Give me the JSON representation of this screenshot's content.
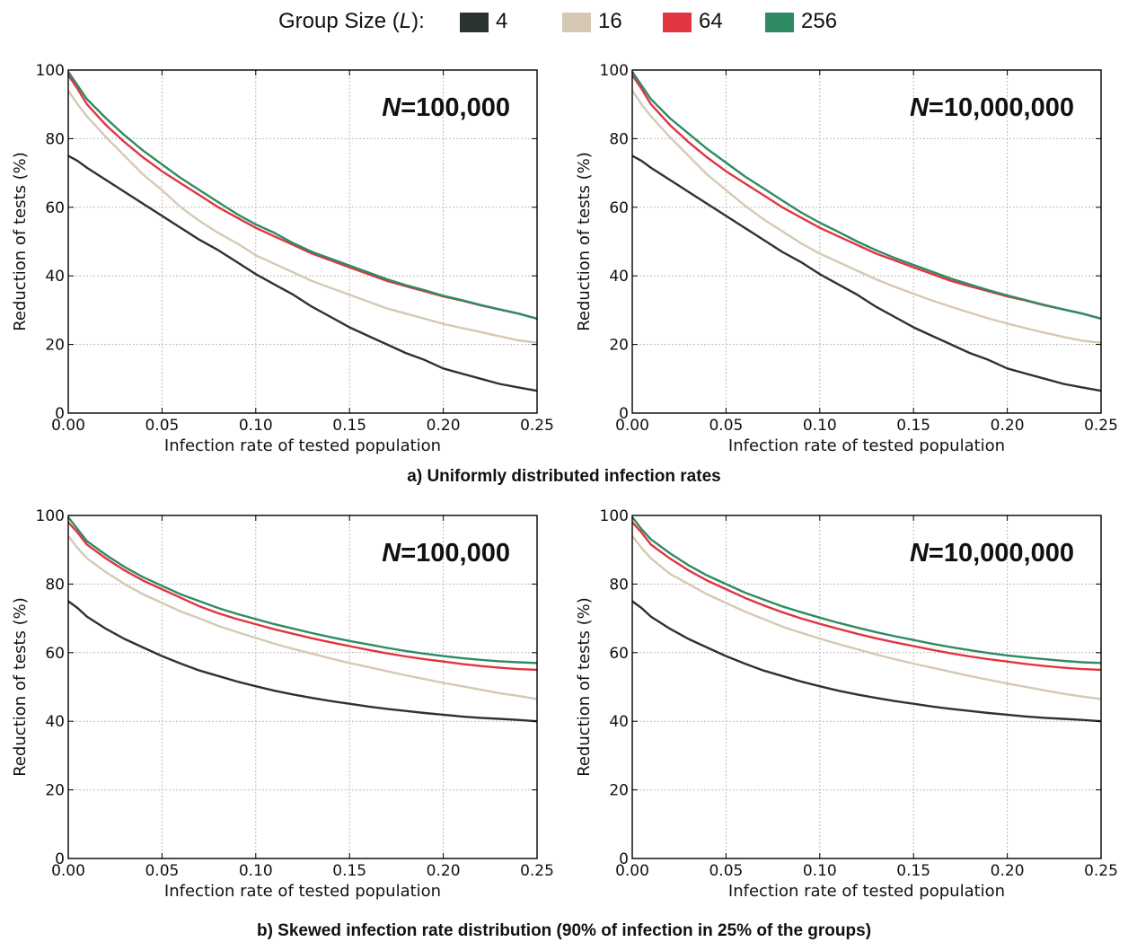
{
  "legend": {
    "title_prefix": "Group Size (",
    "title_var": "L",
    "title_suffix": "):",
    "items": [
      {
        "label": "4",
        "color": "#2b3330"
      },
      {
        "label": "16",
        "color": "#d6c9b3"
      },
      {
        "label": "64",
        "color": "#e23441"
      },
      {
        "label": "256",
        "color": "#2e8b63"
      }
    ]
  },
  "captions": {
    "a": "a) Uniformly distributed infection rates",
    "b": "b) Skewed infection rate distribution (90% of infection in 25% of the groups)"
  },
  "chart_data": [
    {
      "type": "line",
      "annotation_var": "N",
      "annotation_value": "=100,000",
      "xlabel": "Infection rate of tested population",
      "ylabel": "Reduction of tests (%)",
      "xlim": [
        0,
        0.25
      ],
      "ylim": [
        0,
        100
      ],
      "xticks": [
        "0.00",
        "0.05",
        "0.10",
        "0.15",
        "0.20",
        "0.25"
      ],
      "yticks": [
        "0",
        "20",
        "40",
        "60",
        "80",
        "100"
      ],
      "grid": true,
      "x": [
        0,
        0.005,
        0.01,
        0.02,
        0.03,
        0.04,
        0.05,
        0.06,
        0.07,
        0.08,
        0.09,
        0.1,
        0.11,
        0.12,
        0.13,
        0.14,
        0.15,
        0.16,
        0.17,
        0.18,
        0.19,
        0.2,
        0.21,
        0.22,
        0.23,
        0.24,
        0.25
      ],
      "series": [
        {
          "name": "4",
          "values": [
            75.0,
            73.5,
            71.5,
            68.0,
            64.5,
            61.0,
            57.5,
            54.0,
            50.5,
            47.5,
            44.0,
            40.5,
            37.5,
            34.5,
            31.0,
            28.0,
            25.0,
            22.5,
            20.0,
            17.5,
            15.5,
            13.0,
            11.5,
            10.0,
            8.5,
            7.5,
            6.5
          ]
        },
        {
          "name": "16",
          "values": [
            94.0,
            90.0,
            86.5,
            80.5,
            75.0,
            69.5,
            65.0,
            60.0,
            56.0,
            52.5,
            49.5,
            46.0,
            43.5,
            41.0,
            38.5,
            36.5,
            34.5,
            32.5,
            30.5,
            29.0,
            27.5,
            26.0,
            24.8,
            23.6,
            22.4,
            21.2,
            20.5
          ]
        },
        {
          "name": "64",
          "values": [
            98.5,
            94.5,
            90.0,
            84.0,
            79.0,
            74.5,
            70.5,
            67.0,
            63.5,
            60.0,
            57.0,
            54.0,
            51.5,
            49.0,
            46.5,
            44.5,
            42.5,
            40.5,
            38.5,
            37.0,
            35.5,
            34.0,
            32.8,
            31.4,
            30.2,
            29.0,
            27.5
          ]
        },
        {
          "name": "256",
          "values": [
            99.5,
            95.5,
            91.5,
            86.0,
            81.0,
            76.5,
            72.5,
            68.5,
            65.0,
            61.5,
            58.0,
            55.0,
            52.5,
            49.5,
            47.0,
            45.0,
            43.0,
            41.0,
            39.0,
            37.3,
            35.8,
            34.2,
            32.9,
            31.5,
            30.2,
            29.0,
            27.5
          ]
        }
      ]
    },
    {
      "type": "line",
      "annotation_var": "N",
      "annotation_value": "=10,000,000",
      "xlabel": "Infection rate of tested population",
      "ylabel": "Reduction of tests (%)",
      "xlim": [
        0,
        0.25
      ],
      "ylim": [
        0,
        100
      ],
      "xticks": [
        "0.00",
        "0.05",
        "0.10",
        "0.15",
        "0.20",
        "0.25"
      ],
      "yticks": [
        "0",
        "20",
        "40",
        "60",
        "80",
        "100"
      ],
      "grid": true,
      "x": [
        0,
        0.005,
        0.01,
        0.02,
        0.03,
        0.04,
        0.05,
        0.06,
        0.07,
        0.08,
        0.09,
        0.1,
        0.11,
        0.12,
        0.13,
        0.14,
        0.15,
        0.16,
        0.17,
        0.18,
        0.19,
        0.2,
        0.21,
        0.22,
        0.23,
        0.24,
        0.25
      ],
      "series": [
        {
          "name": "4",
          "values": [
            75.0,
            73.5,
            71.5,
            68.0,
            64.5,
            61.0,
            57.5,
            54.0,
            50.5,
            47.0,
            44.0,
            40.5,
            37.5,
            34.5,
            31.0,
            28.0,
            25.0,
            22.5,
            20.0,
            17.5,
            15.5,
            13.0,
            11.5,
            10.0,
            8.5,
            7.5,
            6.5
          ]
        },
        {
          "name": "16",
          "values": [
            94.0,
            90.0,
            86.5,
            80.5,
            75.0,
            69.5,
            65.0,
            60.5,
            56.5,
            53.0,
            49.5,
            46.5,
            44.0,
            41.5,
            39.0,
            36.8,
            34.8,
            32.8,
            31.0,
            29.3,
            27.6,
            26.1,
            24.7,
            23.4,
            22.2,
            21.1,
            20.5
          ]
        },
        {
          "name": "64",
          "values": [
            98.5,
            94.5,
            90.0,
            84.0,
            79.0,
            74.5,
            70.5,
            67.0,
            63.5,
            60.0,
            57.0,
            54.0,
            51.5,
            49.0,
            46.5,
            44.5,
            42.5,
            40.5,
            38.5,
            37.0,
            35.5,
            34.0,
            32.8,
            31.4,
            30.2,
            29.0,
            27.5
          ]
        },
        {
          "name": "256",
          "values": [
            99.5,
            95.5,
            91.5,
            86.0,
            81.5,
            77.0,
            73.0,
            69.0,
            65.5,
            62.0,
            58.5,
            55.5,
            52.8,
            50.0,
            47.5,
            45.2,
            43.2,
            41.2,
            39.2,
            37.5,
            35.8,
            34.3,
            32.9,
            31.5,
            30.2,
            29.0,
            27.5
          ]
        }
      ]
    },
    {
      "type": "line",
      "annotation_var": "N",
      "annotation_value": "=100,000",
      "xlabel": "Infection rate of tested population",
      "ylabel": "Reduction of tests (%)",
      "xlim": [
        0,
        0.25
      ],
      "ylim": [
        0,
        100
      ],
      "xticks": [
        "0.00",
        "0.05",
        "0.10",
        "0.15",
        "0.20",
        "0.25"
      ],
      "yticks": [
        "0",
        "20",
        "40",
        "60",
        "80",
        "100"
      ],
      "grid": true,
      "x": [
        0,
        0.005,
        0.01,
        0.02,
        0.03,
        0.04,
        0.05,
        0.06,
        0.07,
        0.08,
        0.09,
        0.1,
        0.11,
        0.12,
        0.13,
        0.14,
        0.15,
        0.16,
        0.17,
        0.18,
        0.19,
        0.2,
        0.21,
        0.22,
        0.23,
        0.24,
        0.25
      ],
      "series": [
        {
          "name": "4",
          "values": [
            75.0,
            73.0,
            70.5,
            67.0,
            64.0,
            61.5,
            59.0,
            56.8,
            54.8,
            53.2,
            51.6,
            50.2,
            48.9,
            47.8,
            46.8,
            45.9,
            45.1,
            44.3,
            43.6,
            43.0,
            42.4,
            41.9,
            41.4,
            41.0,
            40.7,
            40.4,
            40.0
          ]
        },
        {
          "name": "16",
          "values": [
            94.0,
            90.5,
            87.5,
            83.5,
            80.0,
            77.0,
            74.5,
            72.0,
            70.0,
            67.8,
            66.0,
            64.3,
            62.6,
            61.1,
            59.7,
            58.3,
            57.0,
            55.8,
            54.6,
            53.4,
            52.3,
            51.2,
            50.2,
            49.2,
            48.2,
            47.4,
            46.5
          ]
        },
        {
          "name": "64",
          "values": [
            98.0,
            95.0,
            91.5,
            87.5,
            84.0,
            81.0,
            78.5,
            76.0,
            73.5,
            71.5,
            69.8,
            68.3,
            66.8,
            65.5,
            64.2,
            63.0,
            61.9,
            60.8,
            59.8,
            58.9,
            58.1,
            57.4,
            56.7,
            56.1,
            55.6,
            55.2,
            55.0
          ]
        },
        {
          "name": "256",
          "values": [
            99.5,
            96.0,
            92.5,
            88.5,
            85.0,
            82.0,
            79.5,
            77.0,
            75.0,
            73.0,
            71.3,
            69.8,
            68.3,
            67.0,
            65.7,
            64.5,
            63.4,
            62.4,
            61.4,
            60.5,
            59.7,
            59.0,
            58.4,
            57.9,
            57.5,
            57.2,
            57.0
          ]
        }
      ]
    },
    {
      "type": "line",
      "annotation_var": "N",
      "annotation_value": "=10,000,000",
      "xlabel": "Infection rate of tested population",
      "ylabel": "Reduction of tests (%)",
      "xlim": [
        0,
        0.25
      ],
      "ylim": [
        0,
        100
      ],
      "xticks": [
        "0.00",
        "0.05",
        "0.10",
        "0.15",
        "0.20",
        "0.25"
      ],
      "yticks": [
        "0",
        "20",
        "40",
        "60",
        "80",
        "100"
      ],
      "grid": true,
      "x": [
        0,
        0.005,
        0.01,
        0.02,
        0.03,
        0.04,
        0.05,
        0.06,
        0.07,
        0.08,
        0.09,
        0.1,
        0.11,
        0.12,
        0.13,
        0.14,
        0.15,
        0.16,
        0.17,
        0.18,
        0.19,
        0.2,
        0.21,
        0.22,
        0.23,
        0.24,
        0.25
      ],
      "series": [
        {
          "name": "4",
          "values": [
            75.0,
            73.0,
            70.5,
            67.0,
            64.0,
            61.5,
            59.0,
            56.8,
            54.8,
            53.2,
            51.6,
            50.2,
            48.9,
            47.8,
            46.8,
            45.9,
            45.1,
            44.3,
            43.6,
            43.0,
            42.4,
            41.9,
            41.4,
            41.0,
            40.7,
            40.4,
            40.0
          ]
        },
        {
          "name": "16",
          "values": [
            94.0,
            90.5,
            87.5,
            83.0,
            80.0,
            77.0,
            74.5,
            72.0,
            69.8,
            67.6,
            65.8,
            64.1,
            62.5,
            61.0,
            59.5,
            58.1,
            56.8,
            55.6,
            54.4,
            53.2,
            52.1,
            51.0,
            50.0,
            49.0,
            48.0,
            47.2,
            46.5
          ]
        },
        {
          "name": "64",
          "values": [
            98.0,
            95.0,
            91.5,
            87.5,
            84.0,
            81.0,
            78.5,
            76.0,
            73.8,
            71.8,
            70.0,
            68.4,
            66.9,
            65.5,
            64.2,
            63.0,
            61.9,
            60.8,
            59.8,
            58.9,
            58.1,
            57.4,
            56.7,
            56.1,
            55.6,
            55.2,
            55.0
          ]
        },
        {
          "name": "256",
          "values": [
            99.5,
            96.0,
            93.0,
            89.0,
            85.5,
            82.5,
            80.0,
            77.5,
            75.5,
            73.5,
            71.8,
            70.2,
            68.7,
            67.3,
            66.0,
            64.8,
            63.7,
            62.6,
            61.6,
            60.7,
            59.9,
            59.2,
            58.6,
            58.1,
            57.6,
            57.2,
            57.0
          ]
        }
      ]
    }
  ]
}
